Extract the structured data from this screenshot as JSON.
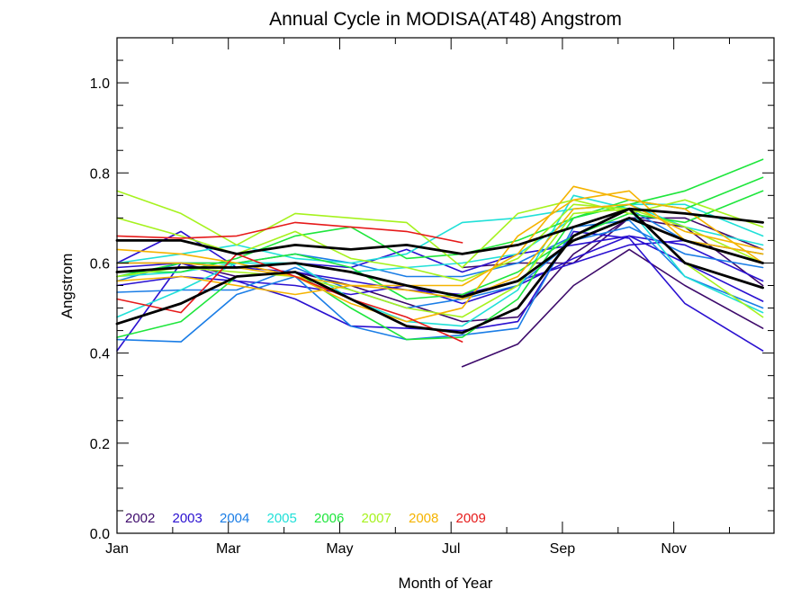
{
  "chart_data": {
    "type": "line",
    "title": "Annual Cycle in MODISA(AT48) Angstrom",
    "xlabel": "Month of Year",
    "ylabel": "Angstrom",
    "xlim": [
      1,
      12.8
    ],
    "ylim": [
      0.0,
      1.1
    ],
    "x_ticks": [
      "Jan",
      "Mar",
      "May",
      "Jul",
      "Sep",
      "Nov"
    ],
    "x_tick_positions": [
      1,
      3,
      5,
      7,
      9,
      11
    ],
    "y_ticks": [
      "0.0",
      "0.2",
      "0.4",
      "0.6",
      "0.8",
      "1.0"
    ],
    "y_tick_values": [
      0.0,
      0.2,
      0.4,
      0.6,
      0.8,
      1.0
    ],
    "grid": false,
    "legend_position": "bottom-left inside",
    "legend": [
      {
        "label": "2002",
        "color": "#3d0a6b"
      },
      {
        "label": "2003",
        "color": "#2a10d0"
      },
      {
        "label": "2004",
        "color": "#1a7de6"
      },
      {
        "label": "2005",
        "color": "#20e0d8"
      },
      {
        "label": "2006",
        "color": "#1ee63c"
      },
      {
        "label": "2007",
        "color": "#a6f21e"
      },
      {
        "label": "2008",
        "color": "#f5b300"
      },
      {
        "label": "2009",
        "color": "#e61a1a"
      }
    ],
    "x": [
      1.0,
      2.15,
      3.15,
      4.2,
      5.2,
      6.2,
      7.2,
      8.2,
      9.2,
      10.2,
      11.2,
      12.6
    ],
    "series": [
      {
        "color": "#3d0a6b",
        "width": 1.6,
        "values": [
          0.6,
          0.6,
          0.57,
          0.58,
          0.55,
          0.51,
          0.47,
          0.48,
          0.62,
          0.7,
          0.68,
          0.55
        ]
      },
      {
        "color": "#3d0a6b",
        "width": 1.6,
        "values": [
          null,
          null,
          null,
          null,
          null,
          null,
          0.37,
          0.42,
          0.55,
          0.63,
          0.55,
          0.455
        ]
      },
      {
        "color": "#3d0a6b",
        "width": 1.6,
        "values": [
          null,
          null,
          null,
          null,
          null,
          null,
          0.59,
          0.6,
          0.6,
          0.7,
          0.7,
          0.63
        ]
      },
      {
        "color": "#2a10d0",
        "width": 1.6,
        "values": [
          0.405,
          0.6,
          0.56,
          0.52,
          0.46,
          0.455,
          0.45,
          0.47,
          0.67,
          0.655,
          0.51,
          0.405
        ]
      },
      {
        "color": "#2a10d0",
        "width": 1.6,
        "values": [
          0.6,
          0.67,
          0.59,
          0.6,
          0.59,
          0.63,
          0.58,
          0.62,
          0.64,
          0.66,
          0.64,
          0.56
        ]
      },
      {
        "color": "#2a10d0",
        "width": 1.6,
        "values": [
          0.55,
          0.57,
          0.56,
          0.55,
          0.53,
          0.55,
          0.51,
          0.55,
          0.61,
          0.66,
          0.6,
          0.515
        ]
      },
      {
        "color": "#2a10d0",
        "width": 1.6,
        "values": [
          0.59,
          0.6,
          0.59,
          0.58,
          0.56,
          0.54,
          0.53,
          0.56,
          0.6,
          0.64,
          0.65,
          0.6
        ]
      },
      {
        "color": "#1a7de6",
        "width": 1.6,
        "values": [
          0.43,
          0.425,
          0.53,
          0.57,
          0.46,
          0.43,
          0.44,
          0.455,
          0.68,
          0.695,
          0.57,
          0.5
        ]
      },
      {
        "color": "#1a7de6",
        "width": 1.6,
        "values": [
          0.535,
          0.54,
          0.54,
          0.59,
          0.54,
          0.5,
          0.52,
          0.55,
          0.65,
          0.68,
          0.62,
          0.59
        ]
      },
      {
        "color": "#1a7de6",
        "width": 1.6,
        "values": [
          0.56,
          0.6,
          0.6,
          0.62,
          0.6,
          0.57,
          0.57,
          0.6,
          0.66,
          0.72,
          0.65,
          0.62
        ]
      },
      {
        "color": "#20e0d8",
        "width": 1.6,
        "values": [
          0.48,
          0.54,
          0.6,
          0.6,
          0.52,
          0.47,
          0.46,
          0.54,
          0.75,
          0.72,
          0.57,
          0.49
        ]
      },
      {
        "color": "#20e0d8",
        "width": 1.6,
        "values": [
          0.6,
          0.62,
          0.64,
          0.61,
          0.6,
          0.62,
          0.69,
          0.7,
          0.72,
          0.73,
          0.73,
          0.66
        ]
      },
      {
        "color": "#20e0d8",
        "width": 1.6,
        "values": [
          0.57,
          0.58,
          0.6,
          0.6,
          0.58,
          0.59,
          0.6,
          0.62,
          0.7,
          0.73,
          0.68,
          0.64
        ]
      },
      {
        "color": "#1ee63c",
        "width": 1.6,
        "values": [
          0.435,
          0.47,
          0.57,
          0.58,
          0.5,
          0.43,
          0.435,
          0.52,
          0.7,
          0.73,
          0.76,
          0.83
        ]
      },
      {
        "color": "#1ee63c",
        "width": 1.6,
        "values": [
          0.58,
          0.58,
          0.61,
          0.66,
          0.68,
          0.61,
          0.62,
          0.65,
          0.7,
          0.74,
          0.72,
          0.79
        ]
      },
      {
        "color": "#1ee63c",
        "width": 1.6,
        "values": [
          0.57,
          0.6,
          0.6,
          0.62,
          0.59,
          0.52,
          0.53,
          0.58,
          0.66,
          0.71,
          0.69,
          0.76
        ]
      },
      {
        "color": "#a6f21e",
        "width": 1.6,
        "values": [
          0.76,
          0.71,
          0.64,
          0.71,
          0.7,
          0.69,
          0.59,
          0.71,
          0.74,
          0.71,
          0.74,
          0.68
        ]
      },
      {
        "color": "#a6f21e",
        "width": 1.6,
        "values": [
          0.7,
          0.66,
          0.62,
          0.67,
          0.61,
          0.59,
          0.56,
          0.61,
          0.73,
          0.72,
          0.68,
          0.6
        ]
      },
      {
        "color": "#a6f21e",
        "width": 1.6,
        "values": [
          0.57,
          0.59,
          0.58,
          0.57,
          0.54,
          0.5,
          0.48,
          0.55,
          0.71,
          0.72,
          0.6,
          0.48
        ]
      },
      {
        "color": "#f5b300",
        "width": 1.6,
        "values": [
          0.56,
          0.57,
          0.55,
          0.53,
          0.55,
          0.55,
          0.55,
          0.62,
          0.77,
          0.74,
          0.72,
          0.6
        ]
      },
      {
        "color": "#f5b300",
        "width": 1.6,
        "values": [
          0.63,
          0.62,
          0.6,
          0.57,
          0.51,
          0.47,
          0.5,
          0.66,
          0.74,
          0.76,
          0.65,
          0.62
        ]
      },
      {
        "color": "#f5b300",
        "width": 1.6,
        "values": [
          0.6,
          0.6,
          0.59,
          0.57,
          0.55,
          0.54,
          0.52,
          0.57,
          0.72,
          0.73,
          0.67,
          0.63
        ]
      },
      {
        "color": "#e61a1a",
        "width": 1.6,
        "values": [
          0.66,
          0.655,
          0.66,
          0.69,
          0.68,
          0.67,
          0.645,
          null,
          null,
          null,
          null,
          null
        ]
      },
      {
        "color": "#e61a1a",
        "width": 1.6,
        "values": [
          0.52,
          0.49,
          0.62,
          0.57,
          0.52,
          0.48,
          0.425,
          null,
          null,
          null,
          null,
          null
        ]
      },
      {
        "color": "#000000",
        "width": 2.8,
        "values": [
          0.465,
          0.51,
          0.57,
          0.58,
          0.52,
          0.46,
          0.445,
          0.5,
          0.66,
          0.72,
          0.6,
          0.545
        ]
      },
      {
        "color": "#000000",
        "width": 2.8,
        "values": [
          0.58,
          0.59,
          0.59,
          0.6,
          0.58,
          0.55,
          0.525,
          0.56,
          0.65,
          0.7,
          0.65,
          0.6
        ]
      },
      {
        "color": "#000000",
        "width": 2.8,
        "values": [
          0.65,
          0.65,
          0.62,
          0.64,
          0.63,
          0.64,
          0.62,
          0.64,
          0.68,
          0.72,
          0.71,
          0.69
        ]
      }
    ]
  }
}
